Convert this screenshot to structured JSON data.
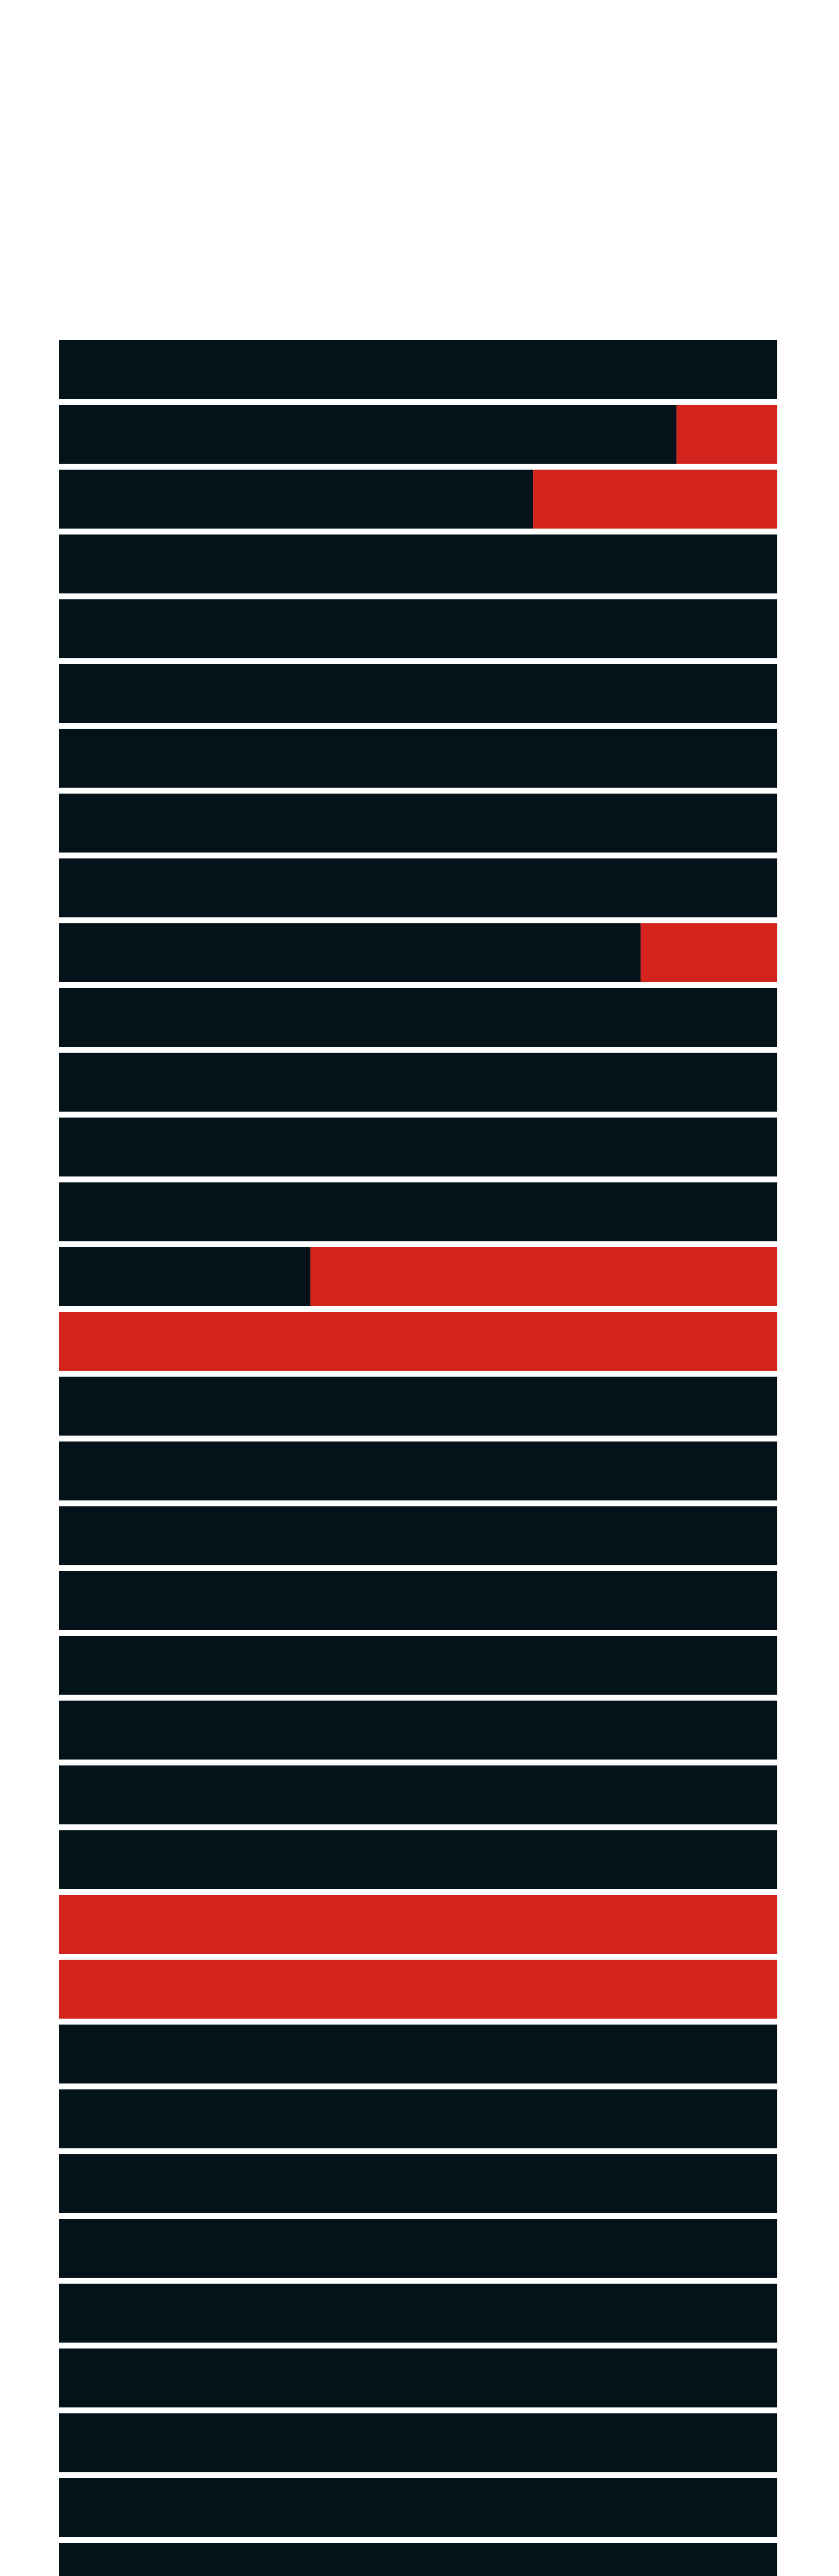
{
  "chart_data": {
    "type": "bar",
    "orientation": "horizontal",
    "stacked": true,
    "grid": false,
    "legend": "none",
    "xlim": [
      0,
      1
    ],
    "colors": {
      "base": "#04131a",
      "highlight": "#d2231c",
      "separator": "#e6e8ee",
      "background": "#ffffff"
    },
    "rows": [
      {
        "highlight_fraction": 0
      },
      {
        "highlight_fraction": 0.14
      },
      {
        "highlight_fraction": 0.34
      },
      {
        "highlight_fraction": 0
      },
      {
        "highlight_fraction": 0
      },
      {
        "highlight_fraction": 0
      },
      {
        "highlight_fraction": 0
      },
      {
        "highlight_fraction": 0
      },
      {
        "highlight_fraction": 0
      },
      {
        "highlight_fraction": 0.19
      },
      {
        "highlight_fraction": 0
      },
      {
        "highlight_fraction": 0
      },
      {
        "highlight_fraction": 0
      },
      {
        "highlight_fraction": 0
      },
      {
        "highlight_fraction": 0.65
      },
      {
        "highlight_fraction": 1
      },
      {
        "highlight_fraction": 0
      },
      {
        "highlight_fraction": 0
      },
      {
        "highlight_fraction": 0
      },
      {
        "highlight_fraction": 0
      },
      {
        "highlight_fraction": 0
      },
      {
        "highlight_fraction": 0
      },
      {
        "highlight_fraction": 0
      },
      {
        "highlight_fraction": 0
      },
      {
        "highlight_fraction": 1
      },
      {
        "highlight_fraction": 1
      },
      {
        "highlight_fraction": 0
      },
      {
        "highlight_fraction": 0
      },
      {
        "highlight_fraction": 0
      },
      {
        "highlight_fraction": 0
      },
      {
        "highlight_fraction": 0
      },
      {
        "highlight_fraction": 0
      },
      {
        "highlight_fraction": 0
      },
      {
        "highlight_fraction": 0
      },
      {
        "highlight_fraction": 0
      },
      {
        "highlight_fraction": 0
      }
    ]
  }
}
